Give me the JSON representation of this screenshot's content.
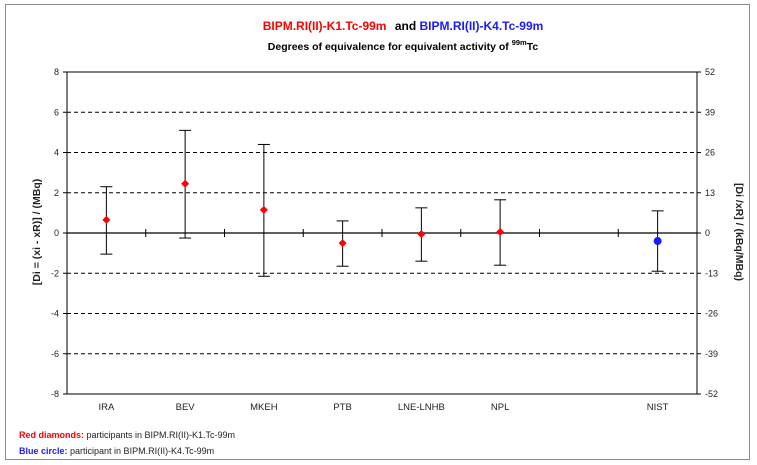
{
  "title": {
    "part1": "BIPM.RI(II)-K1.Tc-99m",
    "joiner": "and",
    "part2": "BIPM.RI(II)-K4.Tc-99m",
    "subtitle_prefix": "Degrees of equivalence for equivalent activity of",
    "subtitle_sup": "99m",
    "subtitle_suffix": "Tc"
  },
  "legend": {
    "red_label": "Red diamonds:",
    "red_text": " participants in BIPM.RI(II)-K1.Tc-99m",
    "blue_label": "Blue circle:",
    "blue_text": " participant in BIPM.RI(II)-K4.Tc-99m"
  },
  "colors": {
    "k1": "#ff0000",
    "k4": "#1a1aff",
    "grid": "#000000"
  },
  "chart_data": {
    "type": "scatter",
    "title": "BIPM.RI(II)-K1.Tc-99m and BIPM.RI(II)-K4.Tc-99m",
    "subtitle": "Degrees of equivalence for equivalent activity of 99mTc",
    "ylabel_left": "[Di = (xi - xR)] / (MBq)",
    "ylabel_right": "[Di /xR] / (kBq/MBq)",
    "ylim": [
      -8,
      8
    ],
    "y_ticks": [
      "8",
      "6",
      "4",
      "2",
      "0",
      "-2",
      "-4",
      "-6",
      "-8"
    ],
    "y2lim": [
      -52,
      52
    ],
    "y2_ticks": [
      "52",
      "39",
      "26",
      "13",
      "0",
      "-13",
      "-26",
      "-39",
      "-52"
    ],
    "grid": "dashed horizontal",
    "categories": [
      "IRA",
      "BEV",
      "MKEH",
      "PTB",
      "LNE-LNHB",
      "NPL",
      "",
      "NIST"
    ],
    "series": [
      {
        "name": "Red diamonds: participants in BIPM.RI(II)-K1.Tc-99m",
        "marker": "diamond",
        "color": "#ff0000",
        "points": [
          {
            "x": "IRA",
            "y": 0.65,
            "low": -1.05,
            "high": 2.3
          },
          {
            "x": "BEV",
            "y": 2.45,
            "low": -0.25,
            "high": 5.1
          },
          {
            "x": "MKEH",
            "y": 1.15,
            "low": -2.15,
            "high": 4.4
          },
          {
            "x": "PTB",
            "y": -0.5,
            "low": -1.65,
            "high": 0.6
          },
          {
            "x": "LNE-LNHB",
            "y": -0.05,
            "low": -1.4,
            "high": 1.25
          },
          {
            "x": "NPL",
            "y": 0.05,
            "low": -1.6,
            "high": 1.65
          }
        ]
      },
      {
        "name": "Blue circle: participant in BIPM.RI(II)-K4.Tc-99m",
        "marker": "circle",
        "color": "#1a1aff",
        "points": [
          {
            "x": "NIST",
            "y": -0.4,
            "low": -1.9,
            "high": 1.1
          }
        ]
      }
    ]
  }
}
